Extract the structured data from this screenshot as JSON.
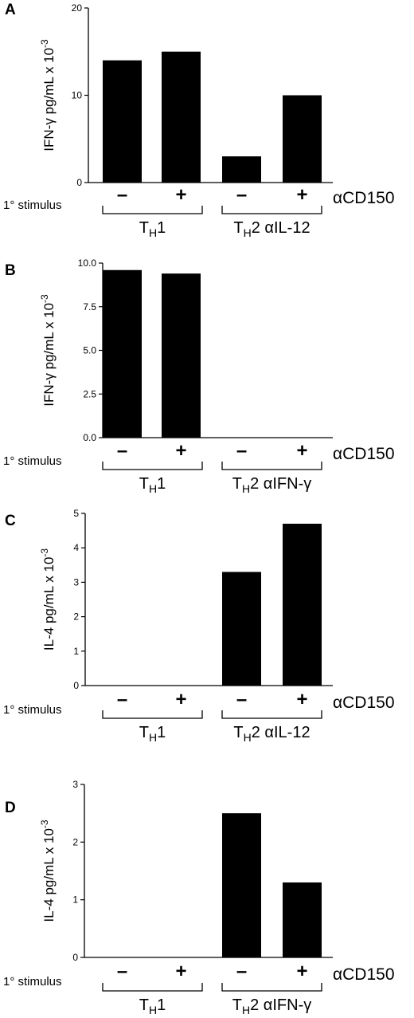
{
  "chart_data": [
    {
      "panel": "A",
      "type": "bar",
      "ylabel_main": "IFN-γ pg/mL x 10",
      "ylabel_exp": "-3",
      "ylim": [
        0,
        20
      ],
      "yticks": [
        0,
        10,
        20
      ],
      "tick_labels": [
        "0",
        "10",
        "20"
      ],
      "values": [
        14,
        15,
        3,
        10
      ],
      "signs": [
        "–",
        "+",
        "–",
        "+"
      ],
      "stimulus_label": "1° stimulus",
      "treatment_label": "αCD150",
      "groups": [
        {
          "main": "T",
          "sub": "H",
          "rest": "1"
        },
        {
          "main": "T",
          "sub": "H",
          "rest": "2 αIL-12"
        }
      ]
    },
    {
      "panel": "B",
      "type": "bar",
      "ylabel_main": "IFN-γ pg/mL x 10",
      "ylabel_exp": "-3",
      "ylim": [
        0,
        10
      ],
      "yticks": [
        0,
        2.5,
        5,
        7.5,
        10
      ],
      "tick_labels": [
        "0.0",
        "2.5",
        "5.0",
        "7.5",
        "10.0"
      ],
      "values": [
        9.6,
        9.4,
        0,
        0
      ],
      "signs": [
        "–",
        "+",
        "–",
        "+"
      ],
      "stimulus_label": "1° stimulus",
      "treatment_label": "αCD150",
      "groups": [
        {
          "main": "T",
          "sub": "H",
          "rest": "1"
        },
        {
          "main": "T",
          "sub": "H",
          "rest": "2 αIFN-γ"
        }
      ]
    },
    {
      "panel": "C",
      "type": "bar",
      "ylabel_main": "IL-4 pg/mL  x 10",
      "ylabel_exp": "-3",
      "ylim": [
        0,
        5
      ],
      "yticks": [
        0,
        1,
        2,
        3,
        4,
        5
      ],
      "tick_labels": [
        "0",
        "1",
        "2",
        "3",
        "4",
        "5"
      ],
      "values": [
        0,
        0,
        3.3,
        4.7
      ],
      "signs": [
        "–",
        "+",
        "–",
        "+"
      ],
      "stimulus_label": "1° stimulus",
      "treatment_label": "αCD150",
      "groups": [
        {
          "main": "T",
          "sub": "H",
          "rest": "1"
        },
        {
          "main": "T",
          "sub": "H",
          "rest": "2 αIL-12"
        }
      ]
    },
    {
      "panel": "D",
      "type": "bar",
      "ylabel_main": "IL-4 pg/mL  x 10",
      "ylabel_exp": "-3",
      "ylim": [
        0,
        3
      ],
      "yticks": [
        0,
        1,
        2,
        3
      ],
      "tick_labels": [
        "0",
        "1",
        "2",
        "3"
      ],
      "values": [
        0,
        0,
        2.5,
        1.3
      ],
      "signs": [
        "–",
        "+",
        "–",
        "+"
      ],
      "stimulus_label": "1° stimulus",
      "treatment_label": "αCD150",
      "groups": [
        {
          "main": "T",
          "sub": "H",
          "rest": "1"
        },
        {
          "main": "T",
          "sub": "H",
          "rest": "2 αIFN-γ"
        }
      ]
    }
  ]
}
